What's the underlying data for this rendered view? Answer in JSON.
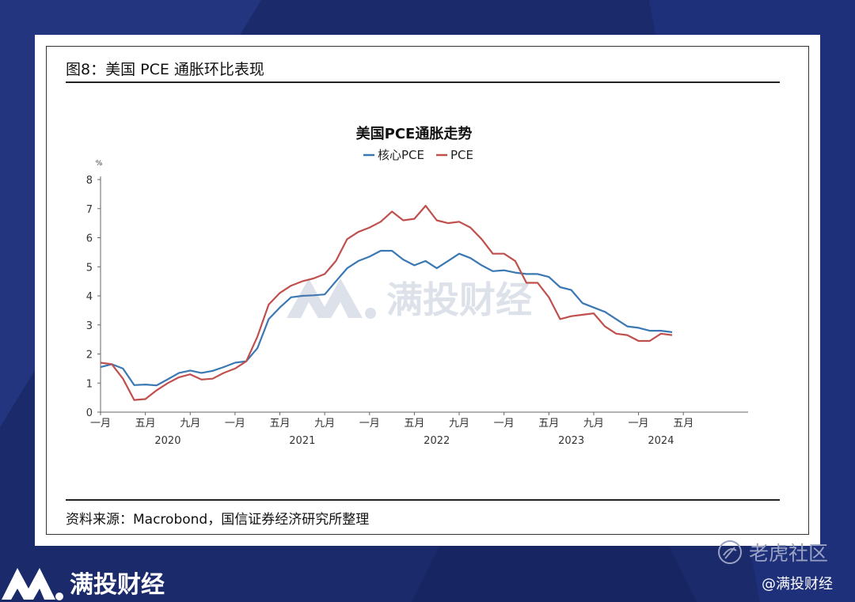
{
  "figure": {
    "title": "图8：美国 PCE 通胀环比表现",
    "source": "资料来源：Macrobond，国信证券经济研究所整理"
  },
  "watermark": {
    "text": "满投财经"
  },
  "branding": {
    "logo_text": "满投财经",
    "platform": "老虎社区",
    "handle": "@满投财经"
  },
  "chart_data": {
    "type": "line",
    "title": "美国PCE通胀走势",
    "ylabel": "%",
    "ylim": [
      0,
      8
    ],
    "yticks": [
      0,
      1,
      2,
      3,
      4,
      5,
      6,
      7,
      8
    ],
    "xlim": [
      "2020-01",
      "2024-04"
    ],
    "xtick_labels": [
      {
        "month": "2020-01",
        "label": "一月"
      },
      {
        "month": "2020-05",
        "label": "五月"
      },
      {
        "month": "2020-09",
        "label": "九月"
      },
      {
        "month": "2021-01",
        "label": "一月"
      },
      {
        "month": "2021-05",
        "label": "五月"
      },
      {
        "month": "2021-09",
        "label": "九月"
      },
      {
        "month": "2022-01",
        "label": "一月"
      },
      {
        "month": "2022-05",
        "label": "五月"
      },
      {
        "month": "2022-09",
        "label": "九月"
      },
      {
        "month": "2023-01",
        "label": "一月"
      },
      {
        "month": "2023-05",
        "label": "五月"
      },
      {
        "month": "2023-09",
        "label": "九月"
      },
      {
        "month": "2024-01",
        "label": "一月"
      },
      {
        "month": "2024-05",
        "label": "五月"
      }
    ],
    "year_labels": [
      {
        "month": "2020-07",
        "label": "2020"
      },
      {
        "month": "2021-07",
        "label": "2021"
      },
      {
        "month": "2022-07",
        "label": "2022"
      },
      {
        "month": "2023-07",
        "label": "2023"
      },
      {
        "month": "2024-03",
        "label": "2024"
      }
    ],
    "legend_position": "top-center",
    "x": [
      "2020-01",
      "2020-02",
      "2020-03",
      "2020-04",
      "2020-05",
      "2020-06",
      "2020-07",
      "2020-08",
      "2020-09",
      "2020-10",
      "2020-11",
      "2020-12",
      "2021-01",
      "2021-02",
      "2021-03",
      "2021-04",
      "2021-05",
      "2021-06",
      "2021-07",
      "2021-08",
      "2021-09",
      "2021-10",
      "2021-11",
      "2021-12",
      "2022-01",
      "2022-02",
      "2022-03",
      "2022-04",
      "2022-05",
      "2022-06",
      "2022-07",
      "2022-08",
      "2022-09",
      "2022-10",
      "2022-11",
      "2022-12",
      "2023-01",
      "2023-02",
      "2023-03",
      "2023-04",
      "2023-05",
      "2023-06",
      "2023-07",
      "2023-08",
      "2023-09",
      "2023-10",
      "2023-11",
      "2023-12",
      "2024-01",
      "2024-02",
      "2024-03",
      "2024-04"
    ],
    "series": [
      {
        "name": "核心PCE",
        "color": "#3a78b4",
        "values": [
          1.55,
          1.65,
          1.5,
          0.93,
          0.95,
          0.92,
          1.13,
          1.35,
          1.43,
          1.35,
          1.42,
          1.55,
          1.7,
          1.75,
          2.2,
          3.2,
          3.6,
          3.95,
          4.0,
          4.02,
          4.05,
          4.5,
          4.95,
          5.2,
          5.35,
          5.55,
          5.55,
          5.25,
          5.05,
          5.2,
          4.95,
          5.2,
          5.45,
          5.3,
          5.05,
          4.85,
          4.88,
          4.8,
          4.75,
          4.75,
          4.65,
          4.3,
          4.2,
          3.75,
          3.6,
          3.45,
          3.2,
          2.95,
          2.9,
          2.8,
          2.8,
          2.75
        ]
      },
      {
        "name": "PCE",
        "color": "#c0504d",
        "values": [
          1.7,
          1.65,
          1.15,
          0.42,
          0.45,
          0.75,
          1.0,
          1.2,
          1.3,
          1.12,
          1.15,
          1.35,
          1.5,
          1.75,
          2.6,
          3.7,
          4.1,
          4.35,
          4.5,
          4.6,
          4.75,
          5.2,
          5.95,
          6.2,
          6.35,
          6.55,
          6.9,
          6.6,
          6.65,
          7.1,
          6.6,
          6.5,
          6.55,
          6.35,
          5.95,
          5.45,
          5.45,
          5.2,
          4.45,
          4.45,
          3.95,
          3.2,
          3.3,
          3.35,
          3.4,
          2.95,
          2.7,
          2.65,
          2.45,
          2.45,
          2.7,
          2.65
        ]
      }
    ]
  }
}
